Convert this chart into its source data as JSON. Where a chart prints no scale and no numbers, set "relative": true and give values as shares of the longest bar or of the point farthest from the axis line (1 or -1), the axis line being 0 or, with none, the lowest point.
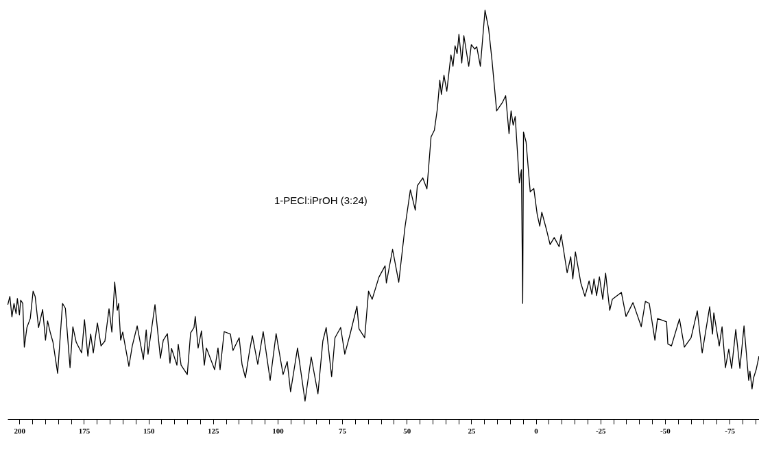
{
  "chart_data": {
    "type": "line",
    "relative": true,
    "annotations": [
      "1-PECl:iPrOH (3:24)"
    ],
    "xlim": [
      204.6,
      -86.4
    ],
    "xticks": [
      200,
      {
        "value": 195,
        "label": null
      },
      {
        "value": 190,
        "label": null
      },
      {
        "value": 185,
        "label": null
      },
      {
        "value": 180,
        "label": null
      },
      175,
      {
        "value": 170,
        "label": null
      },
      {
        "value": 165,
        "label": null
      },
      {
        "value": 160,
        "label": null
      },
      {
        "value": 155,
        "label": null
      },
      150,
      {
        "value": 145,
        "label": null
      },
      {
        "value": 140,
        "label": null
      },
      {
        "value": 135,
        "label": null
      },
      {
        "value": 130,
        "label": null
      },
      125,
      {
        "value": 120,
        "label": null
      },
      {
        "value": 115,
        "label": null
      },
      {
        "value": 110,
        "label": null
      },
      {
        "value": 105,
        "label": null
      },
      100,
      {
        "value": 95,
        "label": null
      },
      {
        "value": 90,
        "label": null
      },
      {
        "value": 85,
        "label": null
      },
      {
        "value": 80,
        "label": null
      },
      75,
      {
        "value": 70,
        "label": null
      },
      {
        "value": 65,
        "label": null
      },
      {
        "value": 60,
        "label": null
      },
      {
        "value": 55,
        "label": null
      },
      50,
      {
        "value": 45,
        "label": null
      },
      {
        "value": 40,
        "label": null
      },
      {
        "value": 35,
        "label": null
      },
      {
        "value": 30,
        "label": null
      },
      25,
      {
        "value": 20,
        "label": null
      },
      {
        "value": 15,
        "label": null
      },
      {
        "value": 10,
        "label": null
      },
      {
        "value": 5,
        "label": null
      },
      0,
      {
        "value": -5,
        "label": null
      },
      {
        "value": -10,
        "label": null
      },
      {
        "value": -15,
        "label": null
      },
      {
        "value": -20,
        "label": null
      },
      -25,
      {
        "value": -30,
        "label": null
      },
      {
        "value": -35,
        "label": null
      },
      {
        "value": -40,
        "label": null
      },
      {
        "value": -45,
        "label": null
      },
      -50,
      {
        "value": -55,
        "label": null
      },
      {
        "value": -60,
        "label": null
      },
      {
        "value": -65,
        "label": null
      },
      {
        "value": -70,
        "label": null
      },
      -75,
      {
        "value": -80,
        "label": null
      },
      {
        "value": -85,
        "label": null
      }
    ],
    "grid": false,
    "series": [
      {
        "color": "#000000",
        "x": [
          204.5,
          203.7,
          202.9,
          202.1,
          201.3,
          200.8,
          200.0,
          199.5,
          198.7,
          198.1,
          197.1,
          195.8,
          194.7,
          193.9,
          192.6,
          191.0,
          189.9,
          189.1,
          188.1,
          187.0,
          185.2,
          183.3,
          182.2,
          180.4,
          179.3,
          178.0,
          175.9,
          174.8,
          173.5,
          172.4,
          171.4,
          169.8,
          168.4,
          166.9,
          165.3,
          164.2,
          163.1,
          162.1,
          161.6,
          160.8,
          160.0,
          157.6,
          156.3,
          154.4,
          152.0,
          150.9,
          150.2,
          147.5,
          145.4,
          144.3,
          142.7,
          141.7,
          141.1,
          139.0,
          138.5,
          137.4,
          135.0,
          133.7,
          132.4,
          131.9,
          130.8,
          129.5,
          128.4,
          127.6,
          124.4,
          123.1,
          122.3,
          120.7,
          118.3,
          117.3,
          114.9,
          113.8,
          112.5,
          110.9,
          109.8,
          107.7,
          105.6,
          102.9,
          100.6,
          97.9,
          96.3,
          95.0,
          92.3,
          89.4,
          87.0,
          84.4,
          82.5,
          81.2,
          79.1,
          77.8,
          75.6,
          74.0,
          71.9,
          69.3,
          68.5,
          66.3,
          64.8,
          63.4,
          60.8,
          58.4,
          57.9,
          55.5,
          53.1,
          50.7,
          48.6,
          46.7,
          45.9,
          43.8,
          42.2,
          40.6,
          39.3,
          38.2,
          37.2,
          36.6,
          35.6,
          34.5,
          32.9,
          32.1,
          31.3,
          30.5,
          29.8,
          28.7,
          27.9,
          26.0,
          25.0,
          23.7,
          22.9,
          21.5,
          19.7,
          18.3,
          17.0,
          15.2,
          13.0,
          11.7,
          10.4,
          9.6,
          8.8,
          8.0,
          6.4,
          5.6,
          5.1,
          4.8,
          3.8,
          2.2,
          0.8,
          -0.5,
          -1.5,
          -2.3,
          -4.2,
          -5.5,
          -7.1,
          -9.0,
          -9.8,
          -12.1,
          -13.5,
          -14.3,
          -15.3,
          -17.4,
          -19.0,
          -20.6,
          -21.7,
          -22.5,
          -23.5,
          -24.6,
          -25.9,
          -27.0,
          -28.6,
          -29.6,
          -33.1,
          -34.9,
          -37.6,
          -40.8,
          -42.4,
          -43.9,
          -46.1,
          -47.1,
          -50.6,
          -51.1,
          -52.5,
          -55.6,
          -57.5,
          -60.1,
          -62.5,
          -64.4,
          -67.3,
          -68.4,
          -68.9,
          -71.0,
          -72.1,
          -73.4,
          -74.7,
          -75.8,
          -77.4,
          -79.0,
          -80.6,
          -82.4,
          -82.9,
          -83.7,
          -84.3,
          -85.3,
          -86.4
        ],
        "values": [
          0.28,
          0.3,
          0.25,
          0.283,
          0.258,
          0.295,
          0.255,
          0.291,
          0.283,
          0.176,
          0.224,
          0.246,
          0.313,
          0.3,
          0.224,
          0.268,
          0.193,
          0.24,
          0.213,
          0.188,
          0.112,
          0.283,
          0.271,
          0.126,
          0.226,
          0.188,
          0.162,
          0.243,
          0.154,
          0.208,
          0.162,
          0.235,
          0.179,
          0.191,
          0.27,
          0.213,
          0.335,
          0.266,
          0.283,
          0.193,
          0.213,
          0.129,
          0.179,
          0.228,
          0.146,
          0.218,
          0.159,
          0.28,
          0.149,
          0.193,
          0.209,
          0.137,
          0.173,
          0.132,
          0.183,
          0.132,
          0.109,
          0.211,
          0.224,
          0.251,
          0.174,
          0.216,
          0.132,
          0.174,
          0.121,
          0.174,
          0.121,
          0.214,
          0.208,
          0.168,
          0.199,
          0.134,
          0.101,
          0.166,
          0.204,
          0.134,
          0.214,
          0.095,
          0.209,
          0.109,
          0.141,
          0.067,
          0.174,
          0.044,
          0.152,
          0.062,
          0.191,
          0.224,
          0.104,
          0.199,
          0.224,
          0.159,
          0.209,
          0.276,
          0.221,
          0.199,
          0.313,
          0.293,
          0.347,
          0.375,
          0.333,
          0.415,
          0.335,
          0.469,
          0.561,
          0.511,
          0.571,
          0.59,
          0.563,
          0.69,
          0.707,
          0.757,
          0.829,
          0.794,
          0.841,
          0.802,
          0.891,
          0.863,
          0.913,
          0.894,
          0.941,
          0.871,
          0.938,
          0.863,
          0.916,
          0.905,
          0.911,
          0.863,
          1.0,
          0.955,
          0.878,
          0.754,
          0.774,
          0.791,
          0.698,
          0.754,
          0.719,
          0.74,
          0.578,
          0.61,
          0.283,
          0.702,
          0.678,
          0.556,
          0.564,
          0.501,
          0.472,
          0.506,
          0.461,
          0.427,
          0.444,
          0.422,
          0.451,
          0.358,
          0.397,
          0.343,
          0.409,
          0.333,
          0.3,
          0.338,
          0.305,
          0.343,
          0.302,
          0.348,
          0.293,
          0.357,
          0.266,
          0.293,
          0.31,
          0.251,
          0.285,
          0.226,
          0.288,
          0.283,
          0.193,
          0.246,
          0.238,
          0.184,
          0.179,
          0.245,
          0.176,
          0.199,
          0.265,
          0.162,
          0.275,
          0.208,
          0.26,
          0.179,
          0.226,
          0.126,
          0.171,
          0.124,
          0.219,
          0.124,
          0.228,
          0.095,
          0.117,
          0.074,
          0.101,
          0.121,
          0.154
        ]
      }
    ]
  }
}
